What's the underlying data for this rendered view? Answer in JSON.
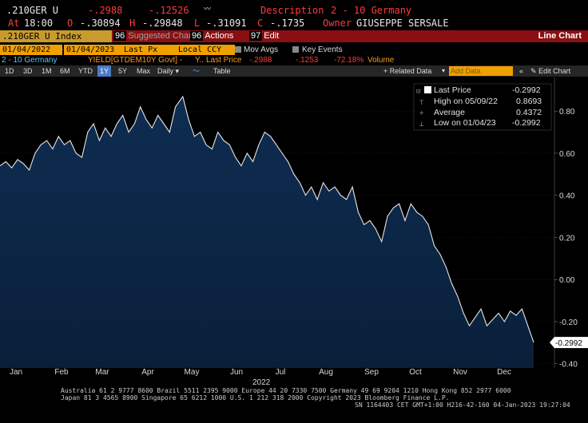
{
  "quote": {
    "ticker": ".210GER U",
    "last": "-.2988",
    "change": "-.12526",
    "description_label": "Description",
    "description": "2 - 10 Germany",
    "at_label": "At",
    "time": "18:00",
    "open_label": "O",
    "open": "-.30894",
    "high_label": "H",
    "high": "-.29848",
    "low_label": "L",
    "low": "-.31091",
    "close_label": "C",
    "close": "-.1735",
    "owner_label": "Owner",
    "owner": "GIUSEPPE SERSALE"
  },
  "menubar": {
    "security": ".210GER U Index",
    "suggested_num": "96",
    "suggested": "Suggested Charts",
    "actions_num": "96",
    "actions": "Actions",
    "edit_num": "97",
    "edit": "Edit",
    "view_title": "Line Chart"
  },
  "controls": {
    "start_date": "01/04/2022",
    "end_date": "01/04/2023",
    "field": "Last Px",
    "currency": "Local CCY",
    "mov_avgs": "Mov Avgs",
    "key_events": "Key Events"
  },
  "security_row": {
    "name": "2 - 10 Germany",
    "ticker": "YIELD[GTDEM10Y Govt] -",
    "y_label": "Y..",
    "last_price_label": "Last Price",
    "last_price": "-.2988",
    "change": "-.1253",
    "pct_change": "-72.18%",
    "volume_label": "Volume"
  },
  "toolbar": {
    "periods": [
      "1D",
      "3D",
      "1M",
      "6M",
      "YTD",
      "1Y",
      "5Y",
      "Max"
    ],
    "selected_period": "1Y",
    "frequency": "Daily",
    "table": "Table",
    "related_data": "+ Related Data",
    "add_data": "Add Data",
    "edit_chart": "Edit Chart"
  },
  "legend": {
    "last_price_label": "Last Price",
    "last_price": "-0.2992",
    "high_label": "High on 05/09/22",
    "high": "0.8693",
    "average_label": "Average",
    "average": "0.4372",
    "low_label": "Low on 01/04/23",
    "low": "-0.2992"
  },
  "chart_data": {
    "type": "area",
    "title": "",
    "xlabel": "2022",
    "ylabel": "",
    "ylim": [
      -0.42,
      0.96
    ],
    "yticks": [
      0.8,
      0.6,
      0.4,
      0.2,
      0.0,
      -0.2,
      -0.4
    ],
    "ytick_labels": [
      "0.80",
      "0.60",
      "0.40",
      "0.20",
      "0.00",
      "-0.20",
      "-0.40"
    ],
    "months": [
      "Jan",
      "Feb",
      "Mar",
      "Apr",
      "May",
      "Jun",
      "Jul",
      "Aug",
      "Sep",
      "Oct",
      "Nov",
      "Dec"
    ],
    "last_value_label": "-0.2992",
    "series": [
      {
        "name": "2 - 10 Germany",
        "x": [
          "2022-01-04",
          "2022-01-08",
          "2022-01-12",
          "2022-01-16",
          "2022-01-20",
          "2022-01-24",
          "2022-01-28",
          "2022-02-01",
          "2022-02-05",
          "2022-02-09",
          "2022-02-13",
          "2022-02-17",
          "2022-02-21",
          "2022-02-25",
          "2022-03-01",
          "2022-03-05",
          "2022-03-09",
          "2022-03-13",
          "2022-03-17",
          "2022-03-21",
          "2022-03-25",
          "2022-03-29",
          "2022-04-02",
          "2022-04-06",
          "2022-04-10",
          "2022-04-14",
          "2022-04-18",
          "2022-04-22",
          "2022-04-26",
          "2022-04-30",
          "2022-05-04",
          "2022-05-09",
          "2022-05-13",
          "2022-05-17",
          "2022-05-21",
          "2022-05-25",
          "2022-05-29",
          "2022-06-02",
          "2022-06-06",
          "2022-06-10",
          "2022-06-14",
          "2022-06-18",
          "2022-06-22",
          "2022-06-26",
          "2022-06-30",
          "2022-07-04",
          "2022-07-08",
          "2022-07-12",
          "2022-07-16",
          "2022-07-20",
          "2022-07-24",
          "2022-07-28",
          "2022-08-01",
          "2022-08-05",
          "2022-08-09",
          "2022-08-13",
          "2022-08-17",
          "2022-08-21",
          "2022-08-25",
          "2022-08-29",
          "2022-09-02",
          "2022-09-06",
          "2022-09-10",
          "2022-09-14",
          "2022-09-18",
          "2022-09-22",
          "2022-09-26",
          "2022-09-30",
          "2022-10-04",
          "2022-10-08",
          "2022-10-12",
          "2022-10-16",
          "2022-10-20",
          "2022-10-24",
          "2022-10-28",
          "2022-11-01",
          "2022-11-05",
          "2022-11-09",
          "2022-11-13",
          "2022-11-17",
          "2022-11-21",
          "2022-11-25",
          "2022-11-29",
          "2022-12-03",
          "2022-12-07",
          "2022-12-11",
          "2022-12-15",
          "2022-12-19",
          "2022-12-23",
          "2022-12-27",
          "2022-12-31",
          "2023-01-04"
        ],
        "values": [
          0.54,
          0.56,
          0.53,
          0.57,
          0.55,
          0.52,
          0.6,
          0.64,
          0.66,
          0.62,
          0.68,
          0.64,
          0.66,
          0.6,
          0.58,
          0.7,
          0.74,
          0.66,
          0.72,
          0.68,
          0.74,
          0.78,
          0.7,
          0.74,
          0.82,
          0.76,
          0.72,
          0.78,
          0.74,
          0.7,
          0.82,
          0.869,
          0.76,
          0.68,
          0.7,
          0.64,
          0.62,
          0.7,
          0.66,
          0.64,
          0.58,
          0.54,
          0.6,
          0.56,
          0.64,
          0.7,
          0.68,
          0.64,
          0.6,
          0.56,
          0.5,
          0.46,
          0.4,
          0.44,
          0.38,
          0.46,
          0.42,
          0.44,
          0.4,
          0.38,
          0.44,
          0.32,
          0.26,
          0.28,
          0.24,
          0.18,
          0.3,
          0.34,
          0.36,
          0.28,
          0.36,
          0.32,
          0.3,
          0.26,
          0.16,
          0.12,
          0.06,
          -0.02,
          -0.08,
          -0.16,
          -0.22,
          -0.18,
          -0.14,
          -0.22,
          -0.19,
          -0.16,
          -0.2,
          -0.15,
          -0.17,
          -0.14,
          -0.22,
          -0.2992
        ]
      }
    ]
  },
  "footer": {
    "line1": "Australia 61 2 9777 8600 Brazil 5511 2395 9000 Europe 44 20 7330 7500 Germany 49 69 9204 1210 Hong Kong 852 2977 6000",
    "line2": "Japan 81 3 4565 8900       Singapore 65 6212 1000      U.S. 1 212 318 2000           Copyright 2023 Bloomberg Finance L.P.",
    "line3": "SN 1164403 CET  GMT+1:00 H216-42-160 04-Jan-2023 19:27:04"
  }
}
